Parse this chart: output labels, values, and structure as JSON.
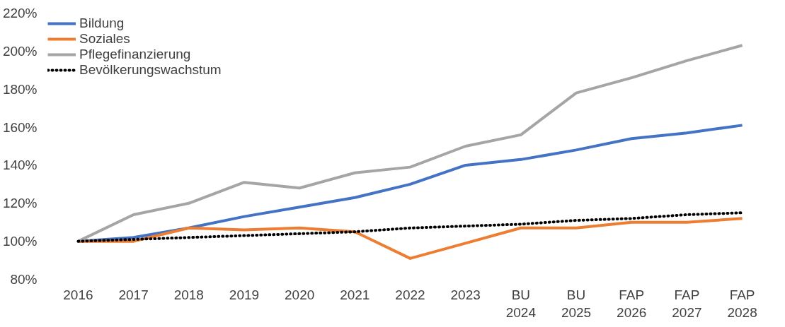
{
  "chart_data": {
    "type": "line",
    "categories": [
      "2016",
      "2017",
      "2018",
      "2019",
      "2020",
      "2021",
      "2022",
      "2023",
      "BU\n2024",
      "BU\n2025",
      "FAP\n2026",
      "FAP\n2027",
      "FAP\n2028"
    ],
    "series": [
      {
        "name": "Bildung",
        "color": "#4472c4",
        "values": [
          100,
          102,
          107,
          113,
          118,
          123,
          130,
          140,
          143,
          148,
          154,
          157,
          161
        ]
      },
      {
        "name": "Soziales",
        "color": "#ed7d31",
        "values": [
          100,
          100,
          107,
          106,
          107,
          105,
          91,
          99,
          107,
          107,
          110,
          110,
          112
        ]
      },
      {
        "name": "Pflegefinanzierung",
        "color": "#a5a5a5",
        "values": [
          100,
          114,
          120,
          131,
          128,
          136,
          139,
          150,
          156,
          178,
          186,
          195,
          203
        ]
      },
      {
        "name": "Bevölkerungswachstum",
        "color": "#000000",
        "line_style": "dotted",
        "values": [
          100,
          101,
          102,
          103,
          104,
          105,
          107,
          108,
          109,
          111,
          112,
          114,
          115
        ]
      }
    ],
    "ylim": [
      80,
      220
    ],
    "yticks": [
      {
        "value": 80,
        "label": "80%"
      },
      {
        "value": 100,
        "label": "100%"
      },
      {
        "value": 120,
        "label": "120%"
      },
      {
        "value": 140,
        "label": "140%"
      },
      {
        "value": 160,
        "label": "160%"
      },
      {
        "value": 180,
        "label": "180%"
      },
      {
        "value": 200,
        "label": "200%"
      },
      {
        "value": 220,
        "label": "220%"
      }
    ],
    "grid": false,
    "legend": "top left"
  }
}
